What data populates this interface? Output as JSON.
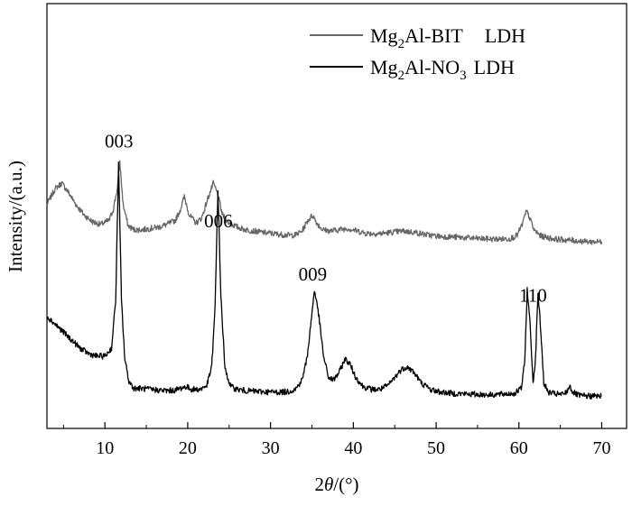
{
  "chart_data": {
    "type": "line",
    "title": "",
    "xlabel": "2θ/(°)",
    "ylabel": "Intensity/(a.u.)",
    "xlim": [
      3,
      73
    ],
    "x_ticks": [
      10,
      20,
      30,
      40,
      50,
      60,
      70
    ],
    "x_tick_labels": [
      "10",
      "20",
      "30",
      "40",
      "50",
      "60",
      "70"
    ],
    "y_ticks_shown": false,
    "grid": false,
    "legend_position": "top-right",
    "series": [
      {
        "name": "Mg2Al-BIT LDH",
        "legend": {
          "base": "Mg",
          "sub1": "2",
          "mid": "Al-BIT",
          "end": "LDH"
        },
        "color": "#666666",
        "x": [
          3,
          4,
          4.8,
          5.5,
          6.5,
          7.5,
          8.5,
          9.5,
          10.5,
          11,
          11.5,
          11.8,
          12.2,
          12.8,
          13.5,
          14.5,
          15.5,
          16.5,
          17.5,
          18.5,
          19.1,
          19.6,
          20.2,
          21,
          21.7,
          22.4,
          23.1,
          23.6,
          24.2,
          25,
          26,
          27,
          28,
          29,
          30,
          31,
          32,
          33,
          33.8,
          34.5,
          35.1,
          35.6,
          36.3,
          37.2,
          38.2,
          39.3,
          40.5,
          41.5,
          43,
          44.5,
          46,
          47.5,
          49,
          50.5,
          52,
          53.5,
          55,
          56.5,
          58,
          59,
          59.8,
          60.4,
          60.9,
          61.3,
          61.8,
          62.6,
          63.5,
          64.5,
          65.5,
          66.5,
          67.5,
          68.5,
          69.3,
          70
        ],
        "y": [
          0.74,
          0.8,
          0.82,
          0.79,
          0.74,
          0.7,
          0.675,
          0.665,
          0.68,
          0.72,
          0.8,
          0.9,
          0.74,
          0.66,
          0.645,
          0.645,
          0.65,
          0.655,
          0.665,
          0.68,
          0.72,
          0.77,
          0.7,
          0.67,
          0.69,
          0.76,
          0.82,
          0.78,
          0.7,
          0.67,
          0.655,
          0.645,
          0.64,
          0.635,
          0.632,
          0.628,
          0.625,
          0.625,
          0.64,
          0.68,
          0.7,
          0.67,
          0.645,
          0.64,
          0.645,
          0.65,
          0.64,
          0.632,
          0.63,
          0.635,
          0.64,
          0.635,
          0.625,
          0.62,
          0.618,
          0.615,
          0.612,
          0.61,
          0.61,
          0.612,
          0.625,
          0.665,
          0.715,
          0.69,
          0.645,
          0.622,
          0.615,
          0.61,
          0.607,
          0.605,
          0.602,
          0.6,
          0.6,
          0.6
        ]
      },
      {
        "name": "Mg2Al-NO3 LDH",
        "legend": {
          "base": "Mg",
          "sub1": "2",
          "mid": "Al-NO",
          "sub2": "3",
          "end": "LDH"
        },
        "color": "#000000",
        "x": [
          3,
          4,
          5,
          6,
          7,
          8,
          9,
          10,
          10.8,
          11.3,
          11.65,
          12.0,
          12.4,
          12.9,
          13.5,
          14.5,
          15.5,
          16.5,
          17.5,
          18.5,
          19.2,
          19.8,
          20.5,
          21.5,
          22.3,
          22.9,
          23.3,
          23.65,
          24.0,
          24.5,
          25.2,
          26,
          27,
          28,
          29,
          30,
          31,
          32,
          33,
          33.8,
          34.4,
          34.9,
          35.3,
          35.8,
          36.4,
          37,
          37.6,
          38.3,
          39.0,
          39.6,
          40.3,
          41.2,
          42.2,
          43.2,
          44.2,
          45,
          45.8,
          46.5,
          47.3,
          48.2,
          49.3,
          50.5,
          52,
          53.5,
          55,
          56.5,
          57.5,
          58.5,
          59.5,
          60.3,
          60.7,
          61.0,
          61.35,
          61.7,
          62.0,
          62.3,
          62.65,
          63.0,
          63.5,
          64.3,
          65.2,
          65.8,
          66.1,
          66.5,
          67.2,
          68,
          69,
          70
        ],
        "y": [
          0.32,
          0.29,
          0.26,
          0.23,
          0.2,
          0.18,
          0.17,
          0.17,
          0.2,
          0.38,
          0.89,
          0.38,
          0.16,
          0.075,
          0.05,
          0.048,
          0.045,
          0.042,
          0.04,
          0.042,
          0.05,
          0.055,
          0.045,
          0.045,
          0.06,
          0.13,
          0.35,
          0.8,
          0.4,
          0.12,
          0.055,
          0.045,
          0.04,
          0.038,
          0.036,
          0.035,
          0.035,
          0.036,
          0.045,
          0.08,
          0.16,
          0.3,
          0.42,
          0.33,
          0.17,
          0.09,
          0.08,
          0.11,
          0.16,
          0.14,
          0.09,
          0.055,
          0.045,
          0.045,
          0.06,
          0.09,
          0.12,
          0.13,
          0.11,
          0.07,
          0.045,
          0.035,
          0.03,
          0.028,
          0.026,
          0.025,
          0.026,
          0.028,
          0.03,
          0.05,
          0.15,
          0.42,
          0.29,
          0.07,
          0.16,
          0.41,
          0.26,
          0.07,
          0.035,
          0.028,
          0.026,
          0.035,
          0.06,
          0.035,
          0.022,
          0.02,
          0.02,
          0.02
        ]
      }
    ],
    "annotations": [
      {
        "text": "003",
        "x": 11.7,
        "y": 0.955
      },
      {
        "text": "006",
        "x": 23.7,
        "y": 0.655
      },
      {
        "text": "009",
        "x": 35.1,
        "y": 0.455
      },
      {
        "text": "110",
        "x": 61.7,
        "y": 0.375
      }
    ]
  }
}
